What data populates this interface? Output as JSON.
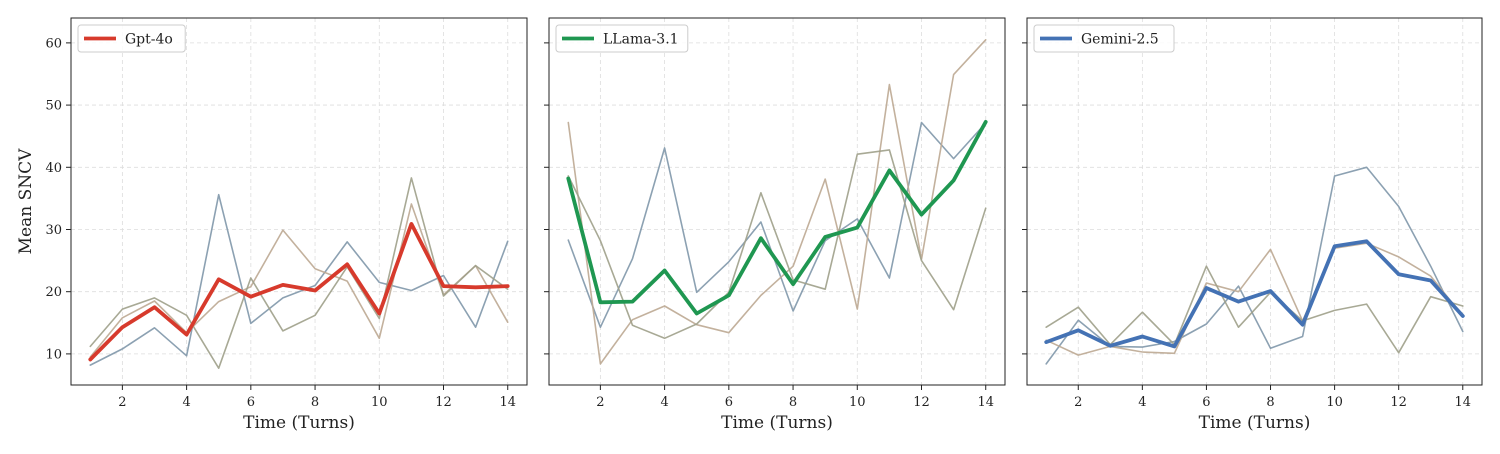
{
  "figure": {
    "ylabel": "Mean SNCV"
  },
  "colors": {
    "grid": "#dddddd",
    "axes": "#222222",
    "legend_border": "#cccccc"
  },
  "chart_data": [
    {
      "type": "line",
      "xlabel": "Time (Turns)",
      "ylabel": "Mean SNCV",
      "xlim": [
        0.4,
        14.6
      ],
      "ylim": [
        5,
        64
      ],
      "xticks": [
        2,
        4,
        6,
        8,
        10,
        12,
        14
      ],
      "yticks": [
        10,
        20,
        30,
        40,
        50,
        60
      ],
      "grid": true,
      "legend_position": "top-left",
      "x": [
        1,
        2,
        3,
        4,
        5,
        6,
        7,
        8,
        9,
        10,
        11,
        12,
        13,
        14
      ],
      "series": [
        {
          "name": "",
          "role": "background",
          "color": "#7f97aa",
          "values": [
            8.2,
            10.8,
            14.2,
            9.7,
            35.6,
            14.9,
            19.0,
            21.0,
            28.0,
            21.5,
            20.2,
            22.6,
            14.3,
            28.1
          ]
        },
        {
          "name": "",
          "role": "background",
          "color": "#bca992",
          "values": [
            9.5,
            15.8,
            18.5,
            13.4,
            18.4,
            20.8,
            29.9,
            23.7,
            21.7,
            12.5,
            34.1,
            19.5,
            24.2,
            15.1
          ]
        },
        {
          "name": "",
          "role": "background",
          "color": "#9fa08a",
          "values": [
            11.2,
            17.2,
            19.0,
            16.2,
            7.7,
            22.2,
            13.7,
            16.2,
            24.0,
            15.7,
            38.3,
            19.3,
            24.2,
            20.4
          ]
        },
        {
          "name": "Gpt-4o",
          "role": "mean",
          "color": "#d73a2c",
          "values": [
            9.1,
            14.3,
            17.5,
            13.1,
            22.0,
            19.2,
            21.1,
            20.2,
            24.4,
            16.5,
            30.9,
            20.9,
            20.7,
            20.9
          ]
        }
      ]
    },
    {
      "type": "line",
      "xlabel": "Time (Turns)",
      "ylabel": "",
      "xlim": [
        0.4,
        14.6
      ],
      "ylim": [
        5,
        64
      ],
      "xticks": [
        2,
        4,
        6,
        8,
        10,
        12,
        14
      ],
      "yticks": [
        10,
        20,
        30,
        40,
        50,
        60
      ],
      "grid": true,
      "legend_position": "top-left",
      "x": [
        1,
        2,
        3,
        4,
        5,
        6,
        7,
        8,
        9,
        10,
        11,
        12,
        13,
        14
      ],
      "series": [
        {
          "name": "",
          "role": "background",
          "color": "#7f97aa",
          "values": [
            28.3,
            14.3,
            25.3,
            43.1,
            19.9,
            24.8,
            31.2,
            16.9,
            28.2,
            31.7,
            22.2,
            47.2,
            41.4,
            47.1
          ]
        },
        {
          "name": "",
          "role": "background",
          "color": "#bca992",
          "values": [
            47.2,
            8.4,
            15.5,
            17.7,
            14.7,
            13.4,
            19.4,
            24.1,
            38.1,
            17.2,
            53.3,
            25.2,
            54.9,
            60.5
          ]
        },
        {
          "name": "",
          "role": "background",
          "color": "#9fa08a",
          "values": [
            38.6,
            28.2,
            14.6,
            12.5,
            14.8,
            19.9,
            35.9,
            21.9,
            20.4,
            42.1,
            42.8,
            25.0,
            17.1,
            33.4
          ]
        },
        {
          "name": "LLama-3.1",
          "role": "mean",
          "color": "#1f9751",
          "values": [
            38.2,
            18.3,
            18.4,
            23.4,
            16.5,
            19.4,
            28.6,
            21.2,
            28.8,
            30.3,
            39.5,
            32.4,
            37.9,
            47.3
          ]
        }
      ]
    },
    {
      "type": "line",
      "xlabel": "Time (Turns)",
      "ylabel": "",
      "xlim": [
        0.4,
        14.6
      ],
      "ylim": [
        5,
        64
      ],
      "xticks": [
        2,
        4,
        6,
        8,
        10,
        12,
        14
      ],
      "yticks": [
        10,
        20,
        30,
        40,
        50,
        60
      ],
      "grid": true,
      "legend_position": "top-left",
      "x": [
        1,
        2,
        3,
        4,
        5,
        6,
        7,
        8,
        9,
        10,
        11,
        12,
        13,
        14
      ],
      "series": [
        {
          "name": "",
          "role": "background",
          "color": "#7f97aa",
          "values": [
            8.4,
            15.4,
            11.2,
            11.1,
            12.0,
            14.8,
            20.9,
            10.9,
            12.8,
            38.6,
            40.0,
            33.7,
            24.1,
            13.6
          ]
        },
        {
          "name": "",
          "role": "background",
          "color": "#bca992",
          "values": [
            12.2,
            9.8,
            11.2,
            10.3,
            10.1,
            21.4,
            20.0,
            26.8,
            15.3,
            27.0,
            27.8,
            25.6,
            22.5,
            16.1
          ]
        },
        {
          "name": "",
          "role": "background",
          "color": "#9fa08a",
          "values": [
            14.3,
            17.5,
            11.5,
            16.7,
            11.5,
            24.1,
            14.3,
            19.9,
            15.3,
            17.0,
            18.0,
            10.2,
            19.2,
            17.7
          ]
        },
        {
          "name": "Gemini-2.5",
          "role": "mean",
          "color": "#4472b4",
          "values": [
            11.9,
            13.8,
            11.3,
            12.8,
            11.2,
            20.6,
            18.4,
            20.1,
            14.7,
            27.3,
            28.1,
            22.8,
            21.8,
            16.1
          ]
        }
      ]
    }
  ]
}
